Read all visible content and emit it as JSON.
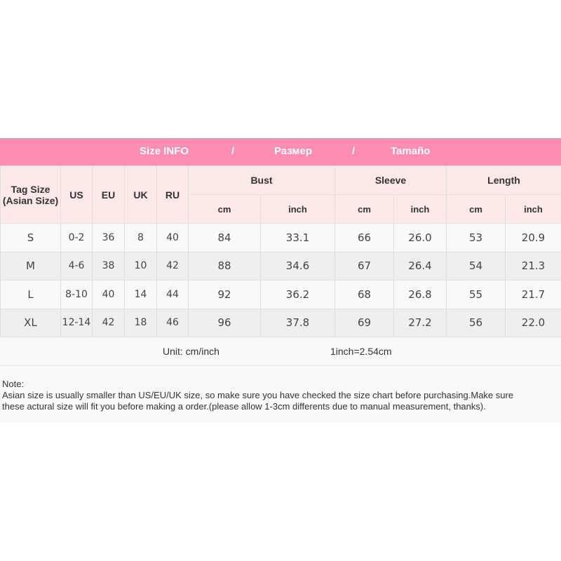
{
  "banner": {
    "title_en": "Size INFO",
    "sep1": "/",
    "title_ru": "Размер",
    "sep2": "/",
    "title_es": "Tamaño",
    "color": "#fd8cb3"
  },
  "header": {
    "tag_size": "Tag Size",
    "tag_size_sub": "(Asian Size)",
    "us": "US",
    "eu": "EU",
    "uk": "UK",
    "ru": "RU",
    "bust": "Bust",
    "sleeve": "Sleeve",
    "length": "Length",
    "cm": "cm",
    "inch": "inch"
  },
  "rows": [
    {
      "tag": "S",
      "us": "0-2",
      "eu": "36",
      "uk": "8",
      "ru": "40",
      "bust_cm": "84",
      "bust_in": "33.1",
      "sleeve_cm": "66",
      "sleeve_in": "26.0",
      "length_cm": "53",
      "length_in": "20.9"
    },
    {
      "tag": "M",
      "us": "4-6",
      "eu": "38",
      "uk": "10",
      "ru": "42",
      "bust_cm": "88",
      "bust_in": "34.6",
      "sleeve_cm": "67",
      "sleeve_in": "26.4",
      "length_cm": "54",
      "length_in": "21.3"
    },
    {
      "tag": "L",
      "us": "8-10",
      "eu": "40",
      "uk": "14",
      "ru": "44",
      "bust_cm": "92",
      "bust_in": "36.2",
      "sleeve_cm": "68",
      "sleeve_in": "26.8",
      "length_cm": "55",
      "length_in": "21.7"
    },
    {
      "tag": "XL",
      "us": "12-14",
      "eu": "42",
      "uk": "18",
      "ru": "46",
      "bust_cm": "96",
      "bust_in": "37.8",
      "sleeve_cm": "69",
      "sleeve_in": "27.2",
      "length_cm": "56",
      "length_in": "22.0"
    }
  ],
  "unit": {
    "label": "Unit: cm/inch",
    "conversion": "1inch=2.54cm"
  },
  "note": {
    "heading": "Note:",
    "line1": "Asian size is usually smaller than US/EU/UK size, so make sure you have checked the size chart before purchasing.Make sure",
    "line2": "these actural size will fit you before making a order.(please allow 1-3cm differents due to manual measurement, thanks)."
  }
}
